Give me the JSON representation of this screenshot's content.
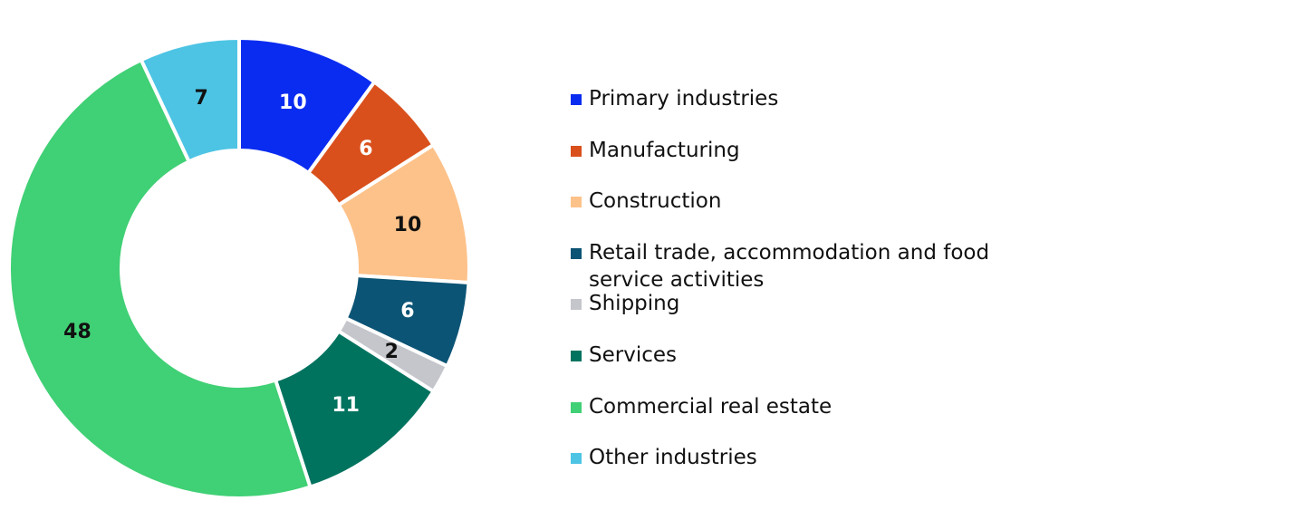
{
  "chart_data": {
    "type": "donut",
    "categories": [
      "Primary industries",
      "Manufacturing",
      "Construction",
      "Retail trade, accommodation and food service activities",
      "Shipping",
      "Services",
      "Commercial real estate",
      "Other industries"
    ],
    "values": [
      10,
      6,
      10,
      6,
      2,
      11,
      48,
      7
    ],
    "colors": [
      "#0a2cf0",
      "#d9501c",
      "#fdc28a",
      "#0b5475",
      "#c4c6cc",
      "#00735f",
      "#40d075",
      "#4dc4e4"
    ]
  }
}
